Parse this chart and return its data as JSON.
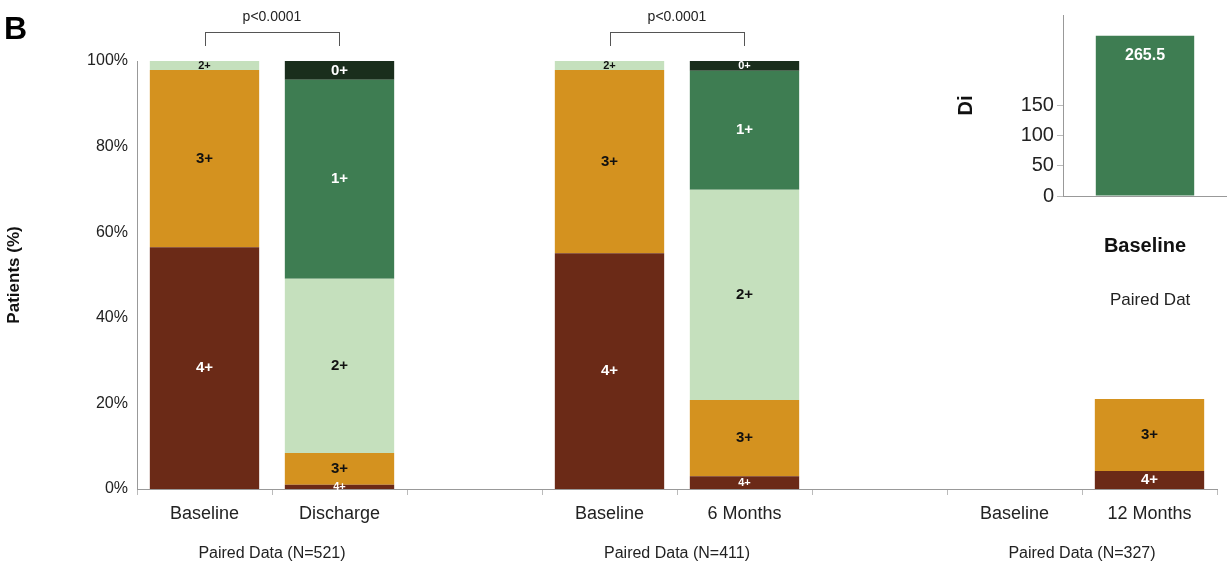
{
  "chart_data": [
    {
      "type": "bar",
      "stacked": true,
      "ylabel": "Patients (%)",
      "categories": [
        "Baseline",
        "Discharge",
        null,
        "Baseline",
        "6 Months",
        null,
        "Baseline",
        "12 Months"
      ],
      "series": [
        {
          "name": "4+",
          "color": "#6b2a17",
          "values": [
            56.5,
            1.0,
            null,
            55.1,
            3.0,
            null,
            null,
            4.2
          ]
        },
        {
          "name": "3+",
          "color": "#d4921f",
          "values": [
            41.4,
            7.4,
            null,
            42.8,
            17.8,
            null,
            null,
            16.8
          ]
        },
        {
          "name": "2+",
          "color": "#c5e0bd",
          "values": [
            2.1,
            40.7,
            null,
            2.1,
            49.1,
            null,
            null,
            null
          ]
        },
        {
          "name": "1+",
          "color": "#3e7d52",
          "values": [
            null,
            46.5,
            null,
            null,
            27.8,
            null,
            null,
            null
          ]
        },
        {
          "name": "0+",
          "color": "#1a2e1c",
          "values": [
            null,
            4.4,
            null,
            null,
            2.3,
            null,
            null,
            null
          ]
        }
      ],
      "ylim": [
        0,
        100
      ],
      "yticks": [
        {
          "value": 0,
          "label": "0%"
        },
        {
          "value": 20,
          "label": "20%"
        },
        {
          "value": 40,
          "label": "40%"
        },
        {
          "value": 60,
          "label": "60%"
        },
        {
          "value": 80,
          "label": "80%"
        },
        {
          "value": 100,
          "label": "100%"
        }
      ],
      "legend": false,
      "annotations": [
        "B",
        "p<0.0001",
        "p<0.0001",
        "Paired Data (N=521)",
        "Paired Data (N=411)",
        "Paired Data (N=327)"
      ]
    },
    {
      "type": "bar",
      "ylabel": "Di",
      "subtitle": "Paired Dat",
      "categories": [
        "Baseline"
      ],
      "values": [
        265.5
      ],
      "color": "#3e7d52",
      "ylim": [
        0,
        300
      ],
      "yticks": [
        0,
        50,
        100,
        150
      ],
      "data_labels": true,
      "legend": false
    }
  ]
}
